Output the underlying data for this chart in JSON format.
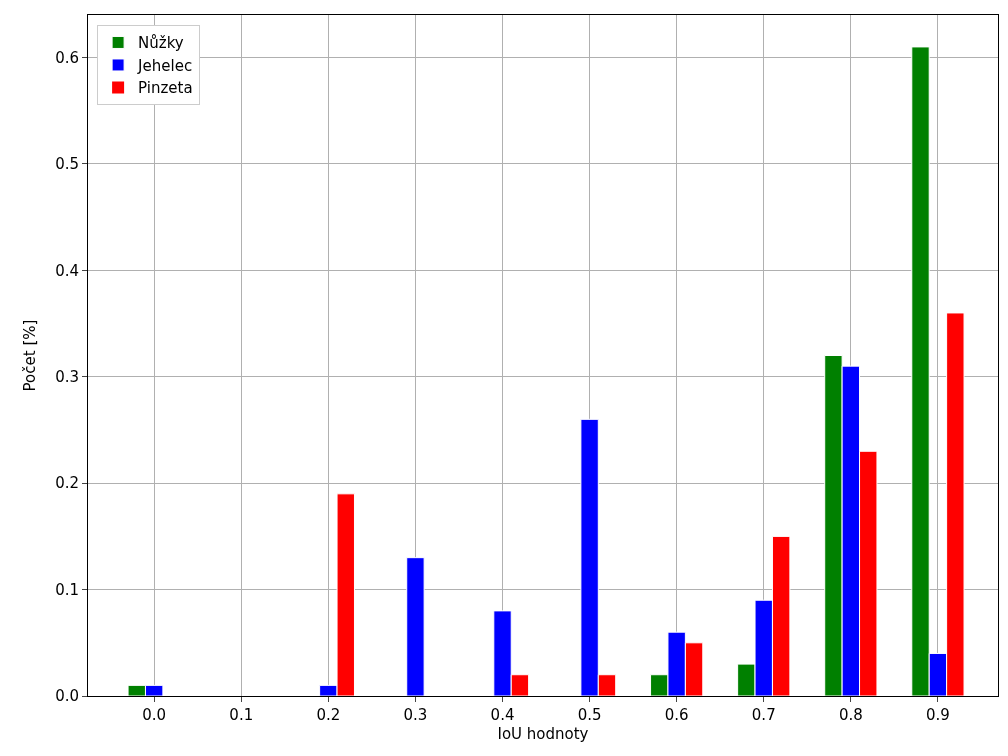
{
  "chart_data": {
    "type": "bar",
    "xlabel": "IoU hodnoty",
    "ylabel": "Počet [%]",
    "categories": [
      "0.0",
      "0.1",
      "0.2",
      "0.3",
      "0.4",
      "0.5",
      "0.6",
      "0.7",
      "0.8",
      "0.9"
    ],
    "series": [
      {
        "name": "Nůžky",
        "color": "#008000",
        "values": [
          0.01,
          0,
          0,
          0,
          0,
          0,
          0.02,
          0.03,
          0.32,
          0.61
        ]
      },
      {
        "name": "Jehelec",
        "color": "#0000ff",
        "values": [
          0.01,
          0,
          0.01,
          0.13,
          0.08,
          0.26,
          0.06,
          0.09,
          0.31,
          0.04
        ]
      },
      {
        "name": "Pinzeta",
        "color": "#ff0000",
        "values": [
          0,
          0,
          0.19,
          0,
          0.02,
          0.02,
          0.05,
          0.15,
          0.23,
          0.36
        ]
      }
    ],
    "ylim": [
      0,
      0.64
    ],
    "yticks": [
      "0.0",
      0.1,
      0.2,
      0.3,
      0.4,
      0.5,
      0.6
    ],
    "grid": true,
    "legend": "top left"
  }
}
